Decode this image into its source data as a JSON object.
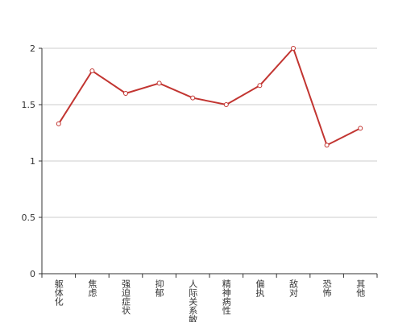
{
  "chart_data": {
    "type": "line",
    "categories": [
      "躯体化",
      "焦虑",
      "强迫症状",
      "抑郁",
      "人际关系敏感",
      "精神病性",
      "偏执",
      "敌对",
      "恐怖",
      "其他"
    ],
    "series": [
      {
        "color": "#c23531",
        "values": [
          1.33,
          1.8,
          1.6,
          1.69,
          1.56,
          1.5,
          1.67,
          2.0,
          1.14,
          1.29
        ]
      }
    ],
    "ylim": [
      0,
      2
    ],
    "yticks": [
      0,
      0.5,
      1,
      1.5,
      2
    ],
    "grid": true
  }
}
